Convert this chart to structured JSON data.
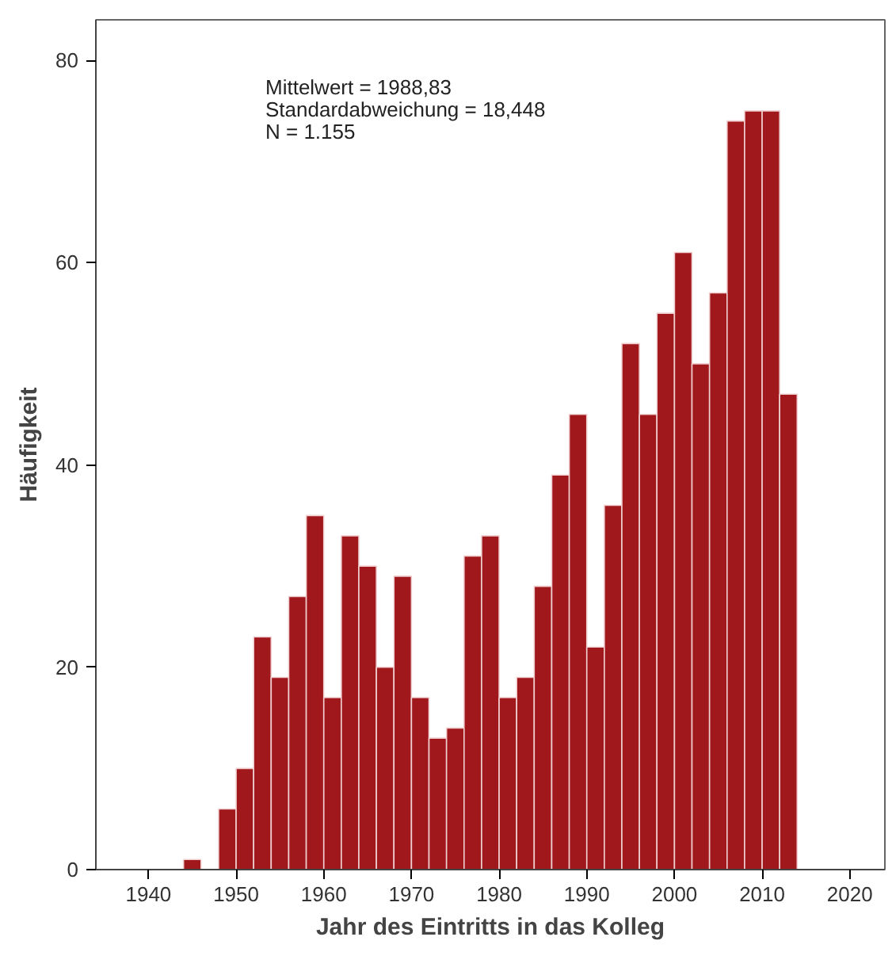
{
  "chart_data": {
    "type": "histogram",
    "xlabel": "Jahr des Eintritts in das Kolleg",
    "ylabel": "Häufigkeit",
    "bins": [
      1944,
      1946,
      1948,
      1950,
      1952,
      1954,
      1956,
      1958,
      1960,
      1962,
      1964,
      1966,
      1968,
      1970,
      1972,
      1974,
      1976,
      1978,
      1980,
      1982,
      1984,
      1986,
      1988,
      1990,
      1992,
      1994,
      1996,
      1998,
      2000,
      2002,
      2004,
      2006,
      2008,
      2010,
      2012,
      2014
    ],
    "values": [
      1,
      0,
      6,
      10,
      23,
      19,
      27,
      35,
      17,
      33,
      30,
      20,
      29,
      17,
      13,
      14,
      31,
      33,
      17,
      19,
      28,
      39,
      45,
      22,
      36,
      52,
      45,
      55,
      61,
      50,
      57,
      74,
      75,
      75,
      47
    ],
    "color": "#a0171c",
    "xlim": [
      1934,
      2024
    ],
    "ylim": [
      0,
      84
    ],
    "xticks": [
      1940,
      1950,
      1960,
      1970,
      1980,
      1990,
      2000,
      2010,
      2020
    ],
    "yticks": [
      0,
      20,
      40,
      60,
      80
    ],
    "grid": false,
    "annotations": [
      "Mittelwert = 1988,83",
      "Standardabweichung = 18,448",
      "N = 1.155"
    ]
  }
}
